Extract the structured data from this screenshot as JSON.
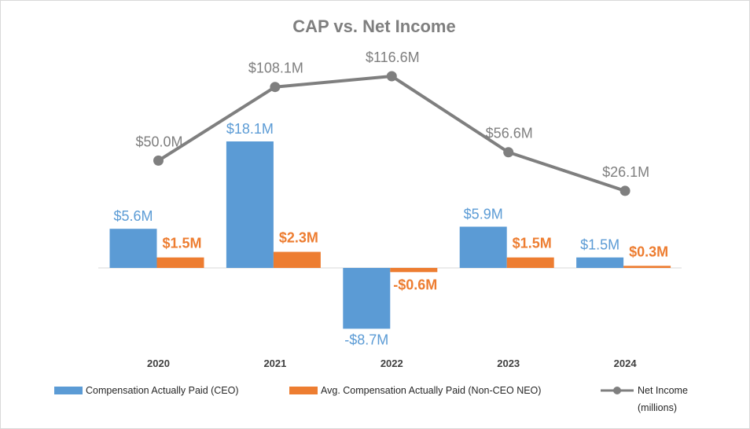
{
  "chart_data": {
    "type": "bar",
    "title": "CAP vs. Net Income",
    "categories": [
      "2020",
      "2021",
      "2022",
      "2023",
      "2024"
    ],
    "series": [
      {
        "name": "Compensation Actually Paid (CEO)",
        "kind": "bar",
        "color": "#5b9bd5",
        "values": [
          5.6,
          18.1,
          -8.7,
          5.9,
          1.5
        ],
        "labels": [
          "$5.6M",
          "$18.1M",
          "-$8.7M",
          "$5.9M",
          "$1.5M"
        ]
      },
      {
        "name": "Avg. Compensation Actually Paid (Non-CEO NEO)",
        "kind": "bar",
        "color": "#ed7d31",
        "values": [
          1.5,
          2.3,
          -0.6,
          1.5,
          0.3
        ],
        "labels": [
          "$1.5M",
          "$2.3M",
          "-$0.6M",
          "$1.5M",
          "$0.3M"
        ]
      },
      {
        "name": "Net Income",
        "name_line2": "(millions)",
        "kind": "line",
        "color": "#7f7f7f",
        "values": [
          50.0,
          108.1,
          116.6,
          56.6,
          26.1
        ],
        "labels": [
          "$50.0M",
          "$108.1M",
          "$116.6M",
          "$56.6M",
          "$26.1M"
        ]
      }
    ],
    "bar_unit": "millions USD",
    "line_unit": "millions USD",
    "legend_position": "bottom"
  }
}
